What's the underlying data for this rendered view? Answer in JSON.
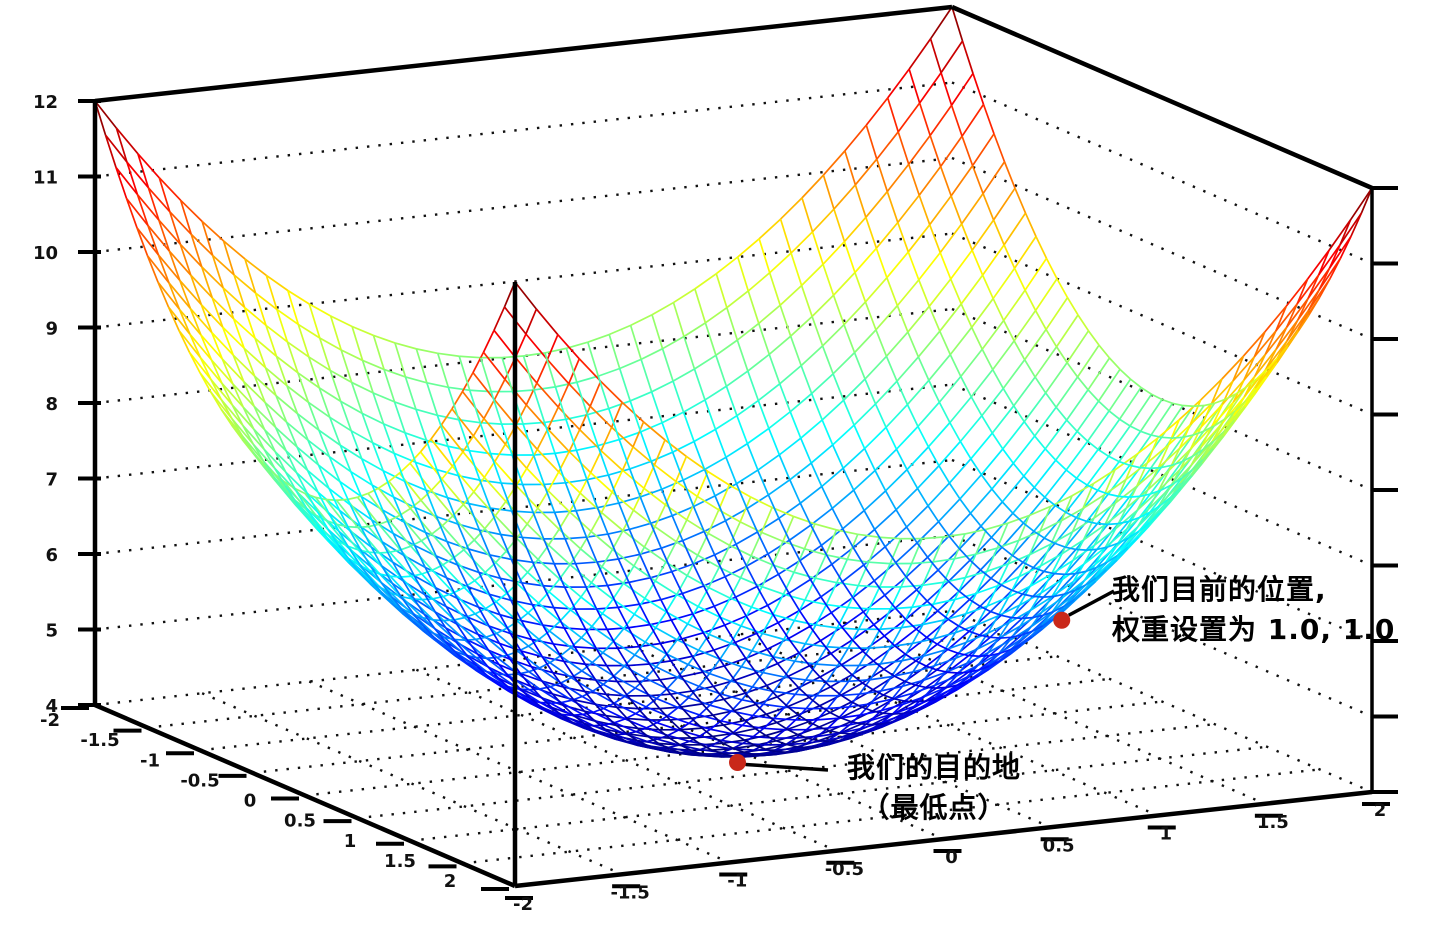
{
  "chart_data": {
    "type": "3d-wireframe-surface",
    "title": "",
    "description": "Bowl-shaped error surface (paraboloid) used to illustrate gradient descent",
    "surface": {
      "formula_text": "z = x^2 + y^2 + 4",
      "z0": 4,
      "kx": 1,
      "ky": 1,
      "cx": 0,
      "cy": 0,
      "mesh_step": 0.1
    },
    "x_range": [
      -2,
      2
    ],
    "y_range": [
      -2,
      2
    ],
    "z_range": [
      4,
      12
    ],
    "ticks": {
      "x": [
        -2,
        -1.5,
        -1,
        -0.5,
        0,
        0.5,
        1,
        1.5,
        2
      ],
      "y": [
        -2,
        -1.5,
        -1,
        -0.5,
        0,
        0.5,
        1,
        1.5,
        2
      ],
      "z": [
        4,
        5,
        6,
        7,
        8,
        9,
        10,
        11,
        12
      ]
    },
    "colormap": "jet",
    "grid_style": "dotted",
    "legend": null,
    "colors": {
      "axis": "#000000",
      "grid_dots": "#111111",
      "annotation_text": "#000000",
      "marker": "#c9281a"
    },
    "points_of_interest": [
      {
        "label": "current position, weights 1.0 1.0",
        "x": 1,
        "y": 1,
        "z": 6
      },
      {
        "label": "destination (minimum)",
        "x": 0,
        "y": 0,
        "z": 4
      }
    ],
    "annotations": [
      {
        "id": "current-position",
        "lines": [
          "我们目前的位置,",
          "权重设置为 1.0, 1.0"
        ],
        "point": {
          "x": 1,
          "y": 1,
          "z": 6
        }
      },
      {
        "id": "destination",
        "lines": [
          "我们的目的地",
          "（最低点）"
        ],
        "point": {
          "x": 0,
          "y": 0,
          "z": 4
        }
      }
    ]
  }
}
